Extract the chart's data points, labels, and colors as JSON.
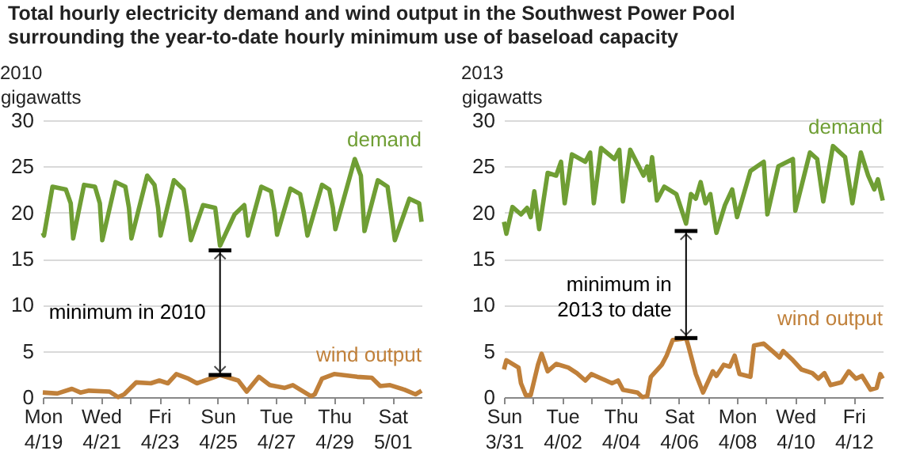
{
  "chart_data": [
    {
      "type": "line",
      "title": "Total hourly electricity demand and wind output in the Southwest Power Pool surrounding the year-to-date hourly minimum use of baseload capacity",
      "subtitle": "2010",
      "ylabel": "gigawatts",
      "grid": "y",
      "legend": false,
      "xlim": [
        "2010-04-19",
        "2010-05-02"
      ],
      "ylim": [
        0,
        30
      ],
      "yticks": [
        0,
        5,
        10,
        15,
        20,
        25,
        30
      ],
      "xticks": [
        {
          "value": "2010-04-19",
          "label": "Mon 4/19"
        },
        {
          "value": "2010-04-20",
          "label": null
        },
        {
          "value": "2010-04-21",
          "label": "Wed 4/21"
        },
        {
          "value": "2010-04-22",
          "label": null
        },
        {
          "value": "2010-04-23",
          "label": "Fri 4/23"
        },
        {
          "value": "2010-04-24",
          "label": null
        },
        {
          "value": "2010-04-25",
          "label": "Sun 4/25"
        },
        {
          "value": "2010-04-26",
          "label": null
        },
        {
          "value": "2010-04-27",
          "label": "Tue 4/27"
        },
        {
          "value": "2010-04-28",
          "label": null
        },
        {
          "value": "2010-04-29",
          "label": "Thu 4/29"
        },
        {
          "value": "2010-04-30",
          "label": null
        },
        {
          "value": "2010-05-01",
          "label": "Sat 5/01"
        }
      ],
      "annotations": [
        {
          "text": "minimum in 2010",
          "x": "2010-04-25T02:00",
          "y": 15.9
        }
      ],
      "series": [
        {
          "name": "demand",
          "color": "#6f9e34",
          "x": [
            "2010-04-19T00:00",
            "2010-04-19T01:00",
            "2010-04-19T08:00",
            "2010-04-19T19:00",
            "2010-04-19T23:00",
            "2010-04-20T01:00",
            "2010-04-20T10:00",
            "2010-04-20T19:00",
            "2010-04-20T23:00",
            "2010-04-21T01:00",
            "2010-04-21T12:00",
            "2010-04-21T20:00",
            "2010-04-21T23:00",
            "2010-04-22T01:00",
            "2010-04-22T14:00",
            "2010-04-22T20:00",
            "2010-04-22T23:00",
            "2010-04-23T01:00",
            "2010-04-23T12:00",
            "2010-04-23T20:00",
            "2010-04-23T23:00",
            "2010-04-24T02:00",
            "2010-04-24T12:00",
            "2010-04-24T22:00",
            "2010-04-25T00:00",
            "2010-04-25T02:00",
            "2010-04-25T14:00",
            "2010-04-25T22:00",
            "2010-04-26T01:00",
            "2010-04-26T12:00",
            "2010-04-26T20:00",
            "2010-04-26T23:00",
            "2010-04-27T01:00",
            "2010-04-27T12:00",
            "2010-04-27T20:00",
            "2010-04-27T23:00",
            "2010-04-28T02:00",
            "2010-04-28T14:00",
            "2010-04-28T20:00",
            "2010-04-28T23:00",
            "2010-04-29T01:00",
            "2010-04-29T17:00",
            "2010-04-29T22:00",
            "2010-04-30T01:00",
            "2010-04-30T12:00",
            "2010-04-30T20:00",
            "2010-04-30T23:00",
            "2010-05-01T02:00",
            "2010-05-01T14:00",
            "2010-05-01T22:00",
            "2010-05-02T00:00"
          ],
          "values": [
            17.8,
            17.5,
            22.8,
            22.5,
            21.0,
            17.2,
            23.0,
            22.8,
            21.0,
            17.0,
            23.3,
            22.8,
            20.5,
            17.2,
            24.0,
            23.0,
            20.5,
            17.5,
            23.5,
            22.5,
            20.0,
            17.0,
            20.8,
            20.5,
            18.5,
            16.4,
            19.8,
            20.8,
            17.5,
            22.8,
            22.3,
            20.0,
            17.6,
            22.6,
            22.0,
            20.0,
            17.5,
            23.0,
            22.5,
            20.5,
            18.2,
            25.8,
            24.0,
            18.0,
            23.5,
            22.8,
            20.0,
            17.0,
            21.5,
            21.0,
            19.0
          ]
        },
        {
          "name": "wind output",
          "color": "#c0803a",
          "x": [
            "2010-04-19T00:00",
            "2010-04-19T12:00",
            "2010-04-20T00:00",
            "2010-04-20T07:00",
            "2010-04-20T14:00",
            "2010-04-21T07:00",
            "2010-04-21T14:00",
            "2010-04-21T19:00",
            "2010-04-22T05:00",
            "2010-04-22T17:00",
            "2010-04-23T00:00",
            "2010-04-23T07:00",
            "2010-04-23T14:00",
            "2010-04-24T00:00",
            "2010-04-24T07:00",
            "2010-04-24T22:00",
            "2010-04-25T02:00",
            "2010-04-25T17:00",
            "2010-04-26T00:00",
            "2010-04-26T10:00",
            "2010-04-26T19:00",
            "2010-04-27T07:00",
            "2010-04-27T14:00",
            "2010-04-28T05:00",
            "2010-04-28T08:00",
            "2010-04-28T14:00",
            "2010-04-29T00:00",
            "2010-04-29T19:00",
            "2010-04-30T07:00",
            "2010-04-30T14:00",
            "2010-04-30T22:00",
            "2010-05-01T10:00",
            "2010-05-01T19:00",
            "2010-05-02T00:00"
          ],
          "values": [
            0.5,
            0.4,
            0.9,
            0.5,
            0.7,
            0.6,
            0.0,
            0.3,
            1.6,
            1.5,
            1.8,
            1.5,
            2.5,
            2.0,
            1.5,
            2.2,
            2.4,
            1.8,
            0.6,
            2.2,
            1.3,
            1.0,
            1.3,
            0.1,
            0.3,
            2.0,
            2.5,
            2.2,
            2.1,
            1.2,
            1.3,
            0.8,
            0.3,
            0.7
          ]
        }
      ]
    },
    {
      "type": "line",
      "subtitle": "2013",
      "ylabel": "gigawatts",
      "grid": "y",
      "legend": false,
      "xlim": [
        "2013-03-31",
        "2013-04-13"
      ],
      "ylim": [
        0,
        30
      ],
      "yticks": [
        0,
        5,
        10,
        15,
        20,
        25,
        30
      ],
      "xticks": [
        {
          "value": "2013-03-31",
          "label": "Sun 3/31"
        },
        {
          "value": "2013-04-01",
          "label": null
        },
        {
          "value": "2013-04-02",
          "label": "Tue 4/02"
        },
        {
          "value": "2013-04-03",
          "label": null
        },
        {
          "value": "2013-04-04",
          "label": "Thu 4/04"
        },
        {
          "value": "2013-04-05",
          "label": null
        },
        {
          "value": "2013-04-06",
          "label": "Sat 4/06"
        },
        {
          "value": "2013-04-07",
          "label": null
        },
        {
          "value": "2013-04-08",
          "label": "Mon 4/08"
        },
        {
          "value": "2013-04-09",
          "label": null
        },
        {
          "value": "2013-04-10",
          "label": "Wed 4/10"
        },
        {
          "value": "2013-04-11",
          "label": null
        },
        {
          "value": "2013-04-12",
          "label": "Fri 4/12"
        }
      ],
      "annotations": [
        {
          "text": "minimum in\n2013 to date",
          "x": "2013-04-06T06:00",
          "y": 18.0
        }
      ],
      "series": [
        {
          "name": "demand",
          "color": "#6f9e34",
          "x": [
            "2013-03-31T00:00",
            "2013-03-31T02:00",
            "2013-03-31T07:00",
            "2013-03-31T14:00",
            "2013-03-31T19:00",
            "2013-03-31T22:00",
            "2013-04-01T01:00",
            "2013-04-01T05:00",
            "2013-04-01T12:00",
            "2013-04-01T19:00",
            "2013-04-01T23:00",
            "2013-04-02T02:00",
            "2013-04-02T08:00",
            "2013-04-02T19:00",
            "2013-04-02T23:00",
            "2013-04-03T02:00",
            "2013-04-03T08:00",
            "2013-04-03T19:00",
            "2013-04-03T23:00",
            "2013-04-04T02:00",
            "2013-04-04T08:00",
            "2013-04-04T19:00",
            "2013-04-04T22:00",
            "2013-04-05T00:00",
            "2013-04-05T02:00",
            "2013-04-05T06:00",
            "2013-04-05T12:00",
            "2013-04-05T22:00",
            "2013-04-06T06:00",
            "2013-04-06T10:00",
            "2013-04-06T14:00",
            "2013-04-06T18:00",
            "2013-04-06T22:00",
            "2013-04-07T02:00",
            "2013-04-07T07:00",
            "2013-04-07T14:00",
            "2013-04-07T20:00",
            "2013-04-08T00:00",
            "2013-04-08T11:00",
            "2013-04-08T22:00",
            "2013-04-09T01:00",
            "2013-04-09T10:00",
            "2013-04-09T22:00",
            "2013-04-10T00:00",
            "2013-04-10T12:00",
            "2013-04-10T18:00",
            "2013-04-10T23:00",
            "2013-04-11T07:00",
            "2013-04-11T17:00",
            "2013-04-11T23:00",
            "2013-04-12T06:00",
            "2013-04-12T12:00",
            "2013-04-12T17:00",
            "2013-04-12T20:00",
            "2013-04-13T00:00"
          ],
          "values": [
            19.0,
            17.7,
            20.6,
            19.8,
            20.5,
            19.5,
            22.3,
            18.2,
            24.3,
            24.0,
            25.5,
            21.0,
            26.3,
            25.5,
            26.5,
            21.0,
            27.0,
            25.8,
            26.8,
            21.2,
            26.8,
            24.0,
            25.0,
            23.5,
            26.0,
            21.3,
            22.8,
            22.0,
            18.8,
            22.0,
            21.5,
            23.3,
            21.0,
            22.0,
            17.8,
            20.8,
            22.5,
            19.5,
            24.5,
            25.5,
            19.8,
            25.0,
            25.8,
            20.2,
            26.5,
            25.8,
            21.2,
            27.2,
            26.0,
            21.0,
            26.5,
            24.0,
            22.5,
            23.6,
            21.3
          ]
        },
        {
          "name": "wind output",
          "color": "#c0803a",
          "x": [
            "2013-03-31T00:00",
            "2013-03-31T02:00",
            "2013-03-31T12:00",
            "2013-03-31T14:00",
            "2013-03-31T18:00",
            "2013-03-31T22:00",
            "2013-04-01T04:00",
            "2013-04-01T07:00",
            "2013-04-01T12:00",
            "2013-04-01T19:00",
            "2013-04-02T05:00",
            "2013-04-02T12:00",
            "2013-04-02T19:00",
            "2013-04-03T00:00",
            "2013-04-03T12:00",
            "2013-04-03T17:00",
            "2013-04-03T22:00",
            "2013-04-04T02:00",
            "2013-04-04T14:00",
            "2013-04-04T18:00",
            "2013-04-04T22:00",
            "2013-04-05T01:00",
            "2013-04-05T10:00",
            "2013-04-05T14:00",
            "2013-04-05T19:00",
            "2013-04-06T02:00",
            "2013-04-06T06:00",
            "2013-04-06T08:00",
            "2013-04-06T14:00",
            "2013-04-06T20:00",
            "2013-04-07T04:00",
            "2013-04-07T07:00",
            "2013-04-07T13:00",
            "2013-04-07T18:00",
            "2013-04-07T22:00",
            "2013-04-08T02:00",
            "2013-04-08T11:00",
            "2013-04-08T14:00",
            "2013-04-08T22:00",
            "2013-04-09T05:00",
            "2013-04-09T11:00",
            "2013-04-09T14:00",
            "2013-04-09T22:00",
            "2013-04-10T05:00",
            "2013-04-10T14:00",
            "2013-04-10T19:00",
            "2013-04-11T00:00",
            "2013-04-11T05:00",
            "2013-04-11T14:00",
            "2013-04-11T20:00",
            "2013-04-12T02:00",
            "2013-04-12T07:00",
            "2013-04-12T14:00",
            "2013-04-12T19:00",
            "2013-04-12T22:00",
            "2013-04-13T00:00"
          ],
          "values": [
            3.0,
            4.0,
            3.2,
            1.5,
            0.2,
            0.2,
            3.5,
            4.7,
            2.8,
            3.6,
            3.2,
            2.6,
            1.8,
            2.5,
            1.8,
            1.5,
            1.8,
            0.8,
            0.5,
            0.0,
            0.1,
            2.2,
            3.5,
            4.5,
            6.2,
            6.3,
            6.4,
            5.5,
            2.5,
            0.5,
            2.8,
            2.3,
            3.5,
            3.3,
            4.5,
            2.5,
            2.2,
            5.6,
            5.8,
            5.0,
            4.3,
            5.0,
            4.0,
            3.0,
            2.6,
            2.0,
            2.6,
            1.3,
            1.6,
            2.8,
            2.0,
            2.3,
            0.8,
            1.0,
            2.5,
            2.0
          ]
        }
      ]
    }
  ]
}
